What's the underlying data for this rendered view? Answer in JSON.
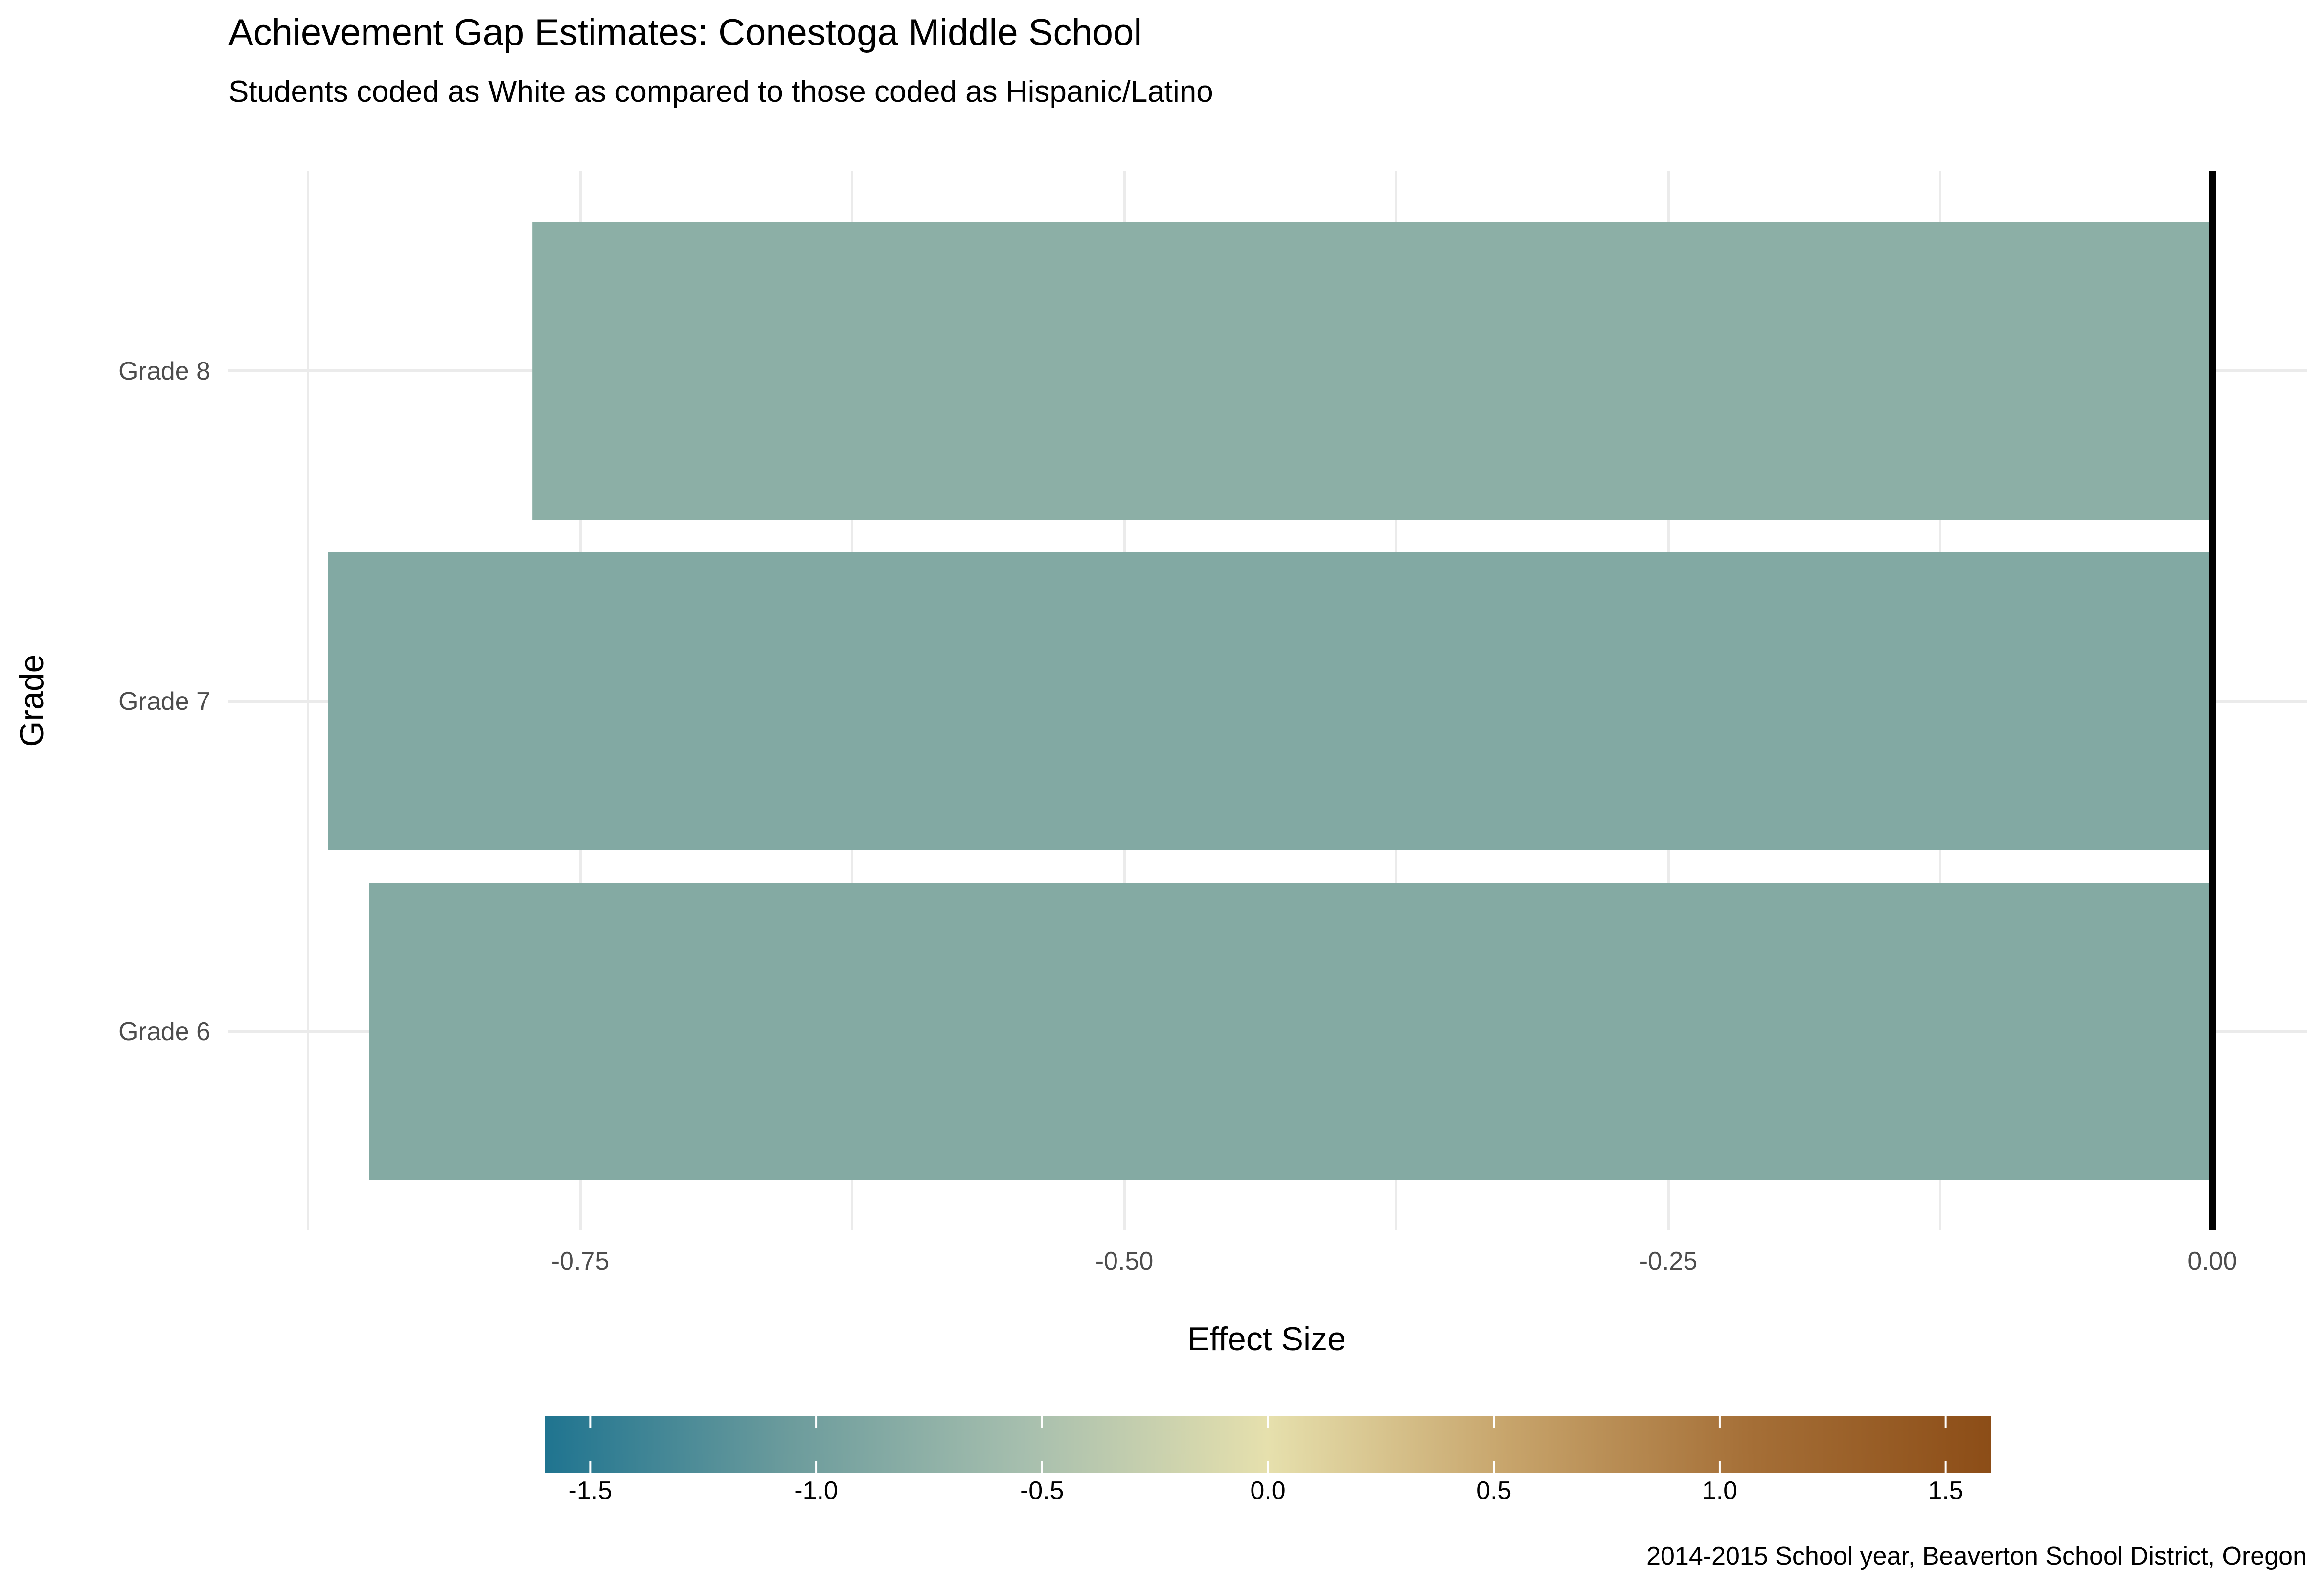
{
  "chart_data": {
    "type": "bar",
    "orientation": "horizontal",
    "title": "Achievement Gap Estimates: Conestoga Middle School",
    "subtitle": "Students coded as White as compared to those coded as Hispanic/Latino",
    "xlabel": "Effect Size",
    "ylabel": "Grade",
    "caption": "2014-2015 School year, Beaverton School District, Oregon",
    "categories": [
      "Grade 6",
      "Grade 7",
      "Grade 8"
    ],
    "values": [
      -0.847,
      -0.866,
      -0.772
    ],
    "xlim": [
      -0.9,
      0.0
    ],
    "x_ticks": [
      -0.75,
      -0.5,
      -0.25,
      0.0
    ],
    "x_tick_labels": [
      "-0.75",
      "-0.50",
      "-0.25",
      "0.00"
    ],
    "grid": true,
    "reference_line": 0.0,
    "color_scale": {
      "limits": [
        -1.6,
        1.6
      ],
      "ticks": [
        -1.5,
        -1.0,
        -0.5,
        0.0,
        0.5,
        1.0,
        1.5
      ],
      "tick_labels": [
        "-1.5",
        "-1.0",
        "-0.5",
        "0.0",
        "0.5",
        "1.0",
        "1.5"
      ],
      "colors": [
        "#1f7490",
        "#6b9b9c",
        "#a7bfae",
        "#e6e0ad",
        "#c7a46b",
        "#a56f37",
        "#8c4d17"
      ],
      "position": "bottom"
    }
  }
}
